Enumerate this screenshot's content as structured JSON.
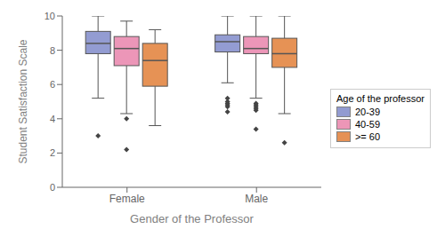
{
  "chart_data": {
    "type": "box",
    "xlabel": "Gender of the Professor",
    "ylabel": "Student Satisfaction Scale",
    "categories": [
      "Female",
      "Male"
    ],
    "legend_title": "Age of the professor",
    "legend": "right",
    "grid": false,
    "marker": "diamond",
    "ylim": [
      0,
      10
    ],
    "yticks": [
      0,
      2,
      4,
      6,
      8,
      10
    ],
    "series": [
      {
        "name": "20-39",
        "color": "#7b86c8",
        "values": [
          {
            "whislo": 5.2,
            "q1": 7.8,
            "med": 8.4,
            "q3": 9.1,
            "whishi": 10.0,
            "fliers": [
              3.0
            ]
          },
          {
            "whislo": 6.1,
            "q1": 7.9,
            "med": 8.5,
            "q3": 8.9,
            "whishi": 10.0,
            "fliers": [
              4.4,
              4.7,
              4.8,
              4.9,
              5.0,
              5.2
            ]
          }
        ]
      },
      {
        "name": "40-59",
        "color": "#e87fa8",
        "values": [
          {
            "whislo": 4.3,
            "q1": 7.1,
            "med": 8.1,
            "q3": 8.8,
            "whishi": 9.7,
            "fliers": [
              2.2,
              4.0
            ]
          },
          {
            "whislo": 5.2,
            "q1": 7.8,
            "med": 8.1,
            "q3": 8.8,
            "whishi": 10.0,
            "fliers": [
              3.4,
              4.5,
              4.6,
              4.7,
              4.8,
              4.9
            ]
          }
        ]
      },
      {
        "name": ">= 60",
        "color": "#e07a30",
        "values": [
          {
            "whislo": 3.6,
            "q1": 5.9,
            "med": 7.4,
            "q3": 8.4,
            "whishi": 9.2,
            "fliers": []
          },
          {
            "whislo": 4.3,
            "q1": 7.0,
            "med": 7.8,
            "q3": 8.7,
            "whishi": 10.0,
            "fliers": [
              2.6
            ]
          }
        ]
      }
    ]
  }
}
